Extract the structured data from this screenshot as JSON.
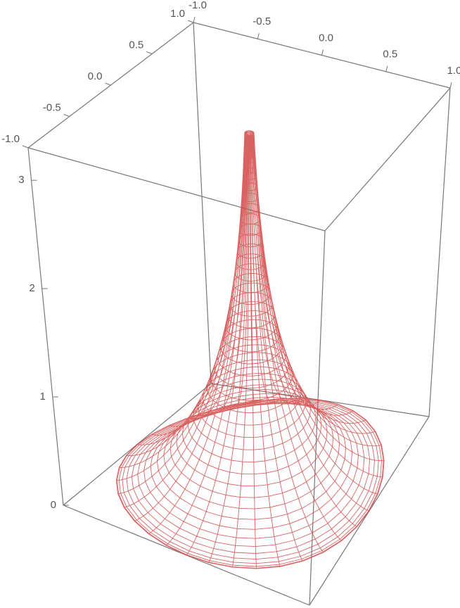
{
  "chart_data": {
    "type": "surface3d",
    "xlim": [
      -1,
      1
    ],
    "ylim": [
      -1,
      1
    ],
    "zlim": [
      0,
      3.3
    ],
    "xticks": [
      {
        "value": -1,
        "label": "-1.0"
      },
      {
        "value": -0.5,
        "label": "-0.5"
      },
      {
        "value": 0,
        "label": "0.0"
      },
      {
        "value": 0.5,
        "label": "0.5"
      },
      {
        "value": 1,
        "label": "1.0"
      }
    ],
    "yticks": [
      {
        "value": -1,
        "label": "-1.0"
      },
      {
        "value": -0.5,
        "label": "-0.5"
      },
      {
        "value": 0,
        "label": "0.0"
      },
      {
        "value": 0.5,
        "label": "0.5"
      },
      {
        "value": 1,
        "label": "1.0"
      }
    ],
    "zticks": [
      0,
      1,
      2,
      3
    ],
    "color": "#d24848"
  }
}
